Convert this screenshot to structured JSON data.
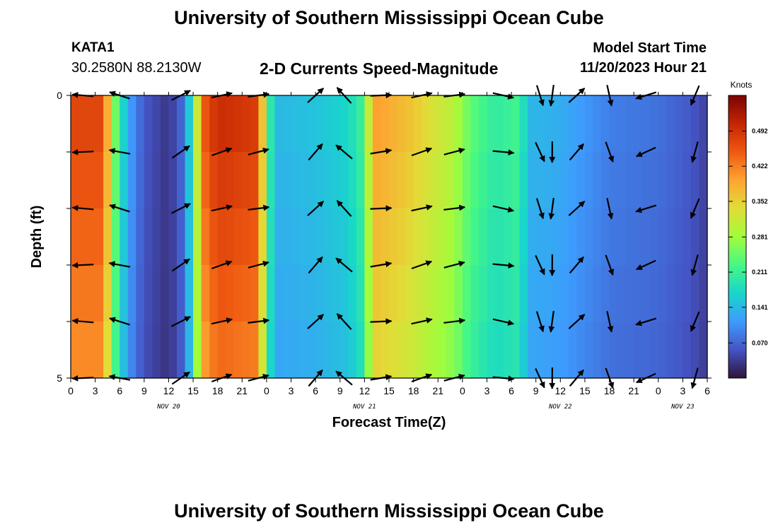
{
  "header": {
    "title": "University of Southern Mississippi Ocean Cube",
    "station_name": "KATA1",
    "station_coords": "30.2580N  88.2130W",
    "plot_title": "2-D Currents Speed-Magnitude",
    "model_start_label": "Model Start Time",
    "model_start_value": "11/20/2023 Hour 21"
  },
  "footer": {
    "title": "University of Southern Mississippi Ocean Cube"
  },
  "chart_data": {
    "type": "heatmap",
    "xlabel": "Forecast Time(Z)",
    "ylabel": "Depth (ft)",
    "x_unit": "hours from 00Z Nov 20, 2023",
    "x_ticks": [
      0,
      3,
      6,
      9,
      12,
      15,
      18,
      21,
      24,
      27,
      30,
      33,
      36,
      39,
      42,
      45,
      48,
      51,
      54,
      57,
      60,
      63,
      66,
      69,
      72,
      75,
      78
    ],
    "x_tick_labels": [
      "0",
      "3",
      "6",
      "9",
      "12",
      "15",
      "18",
      "21",
      "0",
      "3",
      "6",
      "9",
      "12",
      "15",
      "18",
      "21",
      "0",
      "3",
      "6",
      "9",
      "12",
      "15",
      "18",
      "21",
      "0",
      "3",
      "6"
    ],
    "date_labels": [
      {
        "text": "NOV 20",
        "hour": 12
      },
      {
        "text": "NOV 21",
        "hour": 36
      },
      {
        "text": "NOV 22",
        "hour": 60
      },
      {
        "text": "NOV 23",
        "hour": 75
      }
    ],
    "xlim": [
      0,
      78
    ],
    "ylim": [
      0,
      5
    ],
    "y_ticks": [
      0,
      1,
      2,
      3,
      4,
      5
    ],
    "y_tick_labels": [
      "0",
      "",
      "",
      "",
      "",
      "5"
    ],
    "depth_levels": [
      0,
      1,
      2,
      3,
      4,
      5
    ],
    "speed_profile": [
      {
        "hour": 0,
        "speed": 0.47
      },
      {
        "hour": 4,
        "speed": 0.47
      },
      {
        "hour": 5,
        "speed": 0.3
      },
      {
        "hour": 6,
        "speed": 0.2
      },
      {
        "hour": 7,
        "speed": 0.13
      },
      {
        "hour": 8,
        "speed": 0.09
      },
      {
        "hour": 9,
        "speed": 0.06
      },
      {
        "hour": 12,
        "speed": 0.03
      },
      {
        "hour": 13.5,
        "speed": 0.07
      },
      {
        "hour": 15,
        "speed": 0.2
      },
      {
        "hour": 16,
        "speed": 0.44
      },
      {
        "hour": 18,
        "speed": 0.5
      },
      {
        "hour": 23,
        "speed": 0.48
      },
      {
        "hour": 24,
        "speed": 0.25
      },
      {
        "hour": 25,
        "speed": 0.14
      },
      {
        "hour": 30,
        "speed": 0.15
      },
      {
        "hour": 34,
        "speed": 0.17
      },
      {
        "hour": 36,
        "speed": 0.22
      },
      {
        "hour": 37,
        "speed": 0.4
      },
      {
        "hour": 41,
        "speed": 0.37
      },
      {
        "hour": 47,
        "speed": 0.3
      },
      {
        "hour": 49,
        "speed": 0.24
      },
      {
        "hour": 52,
        "speed": 0.2
      },
      {
        "hour": 55,
        "speed": 0.22
      },
      {
        "hour": 56,
        "speed": 0.14
      },
      {
        "hour": 60,
        "speed": 0.13
      },
      {
        "hour": 63,
        "speed": 0.11
      },
      {
        "hour": 66,
        "speed": 0.09
      },
      {
        "hour": 72,
        "speed": 0.08
      },
      {
        "hour": 76,
        "speed": 0.06
      },
      {
        "hour": 78,
        "speed": 0.04
      }
    ],
    "vector_hours": [
      1.5,
      6,
      13.5,
      18.5,
      23,
      30,
      33.5,
      38,
      43,
      47,
      53,
      57.5,
      59,
      62,
      66,
      70.5,
      76.5
    ],
    "vector_directions_deg": [
      178,
      165,
      30,
      15,
      10,
      45,
      135,
      5,
      15,
      10,
      -10,
      -70,
      -95,
      45,
      -75,
      200,
      -110
    ],
    "colorbar": {
      "unit": "Knots",
      "ticks": [
        0.07,
        0.141,
        0.211,
        0.281,
        0.352,
        0.422,
        0.492
      ],
      "tick_labels": [
        "0.070",
        "0.141",
        "0.211",
        "0.281",
        "0.352",
        "0.422",
        "0.492"
      ],
      "range": [
        0.0,
        0.563
      ]
    }
  }
}
